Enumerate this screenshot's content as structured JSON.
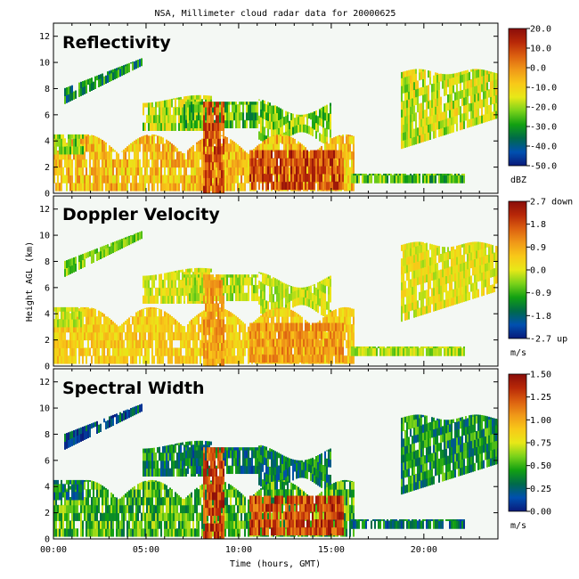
{
  "title": "NSA, Millimeter cloud radar data for 20000625",
  "xlabel": "Time (hours, GMT)",
  "ylabel": "Height AGL (km)",
  "x_tick_labels": [
    "00:00",
    "05:00",
    "10:00",
    "15:00",
    "20:00"
  ],
  "y_tick_labels": [
    "0",
    "2",
    "4",
    "6",
    "8",
    "10",
    "12"
  ],
  "panels": [
    {
      "title": "Reflectivity",
      "unit": "dBZ",
      "colorbar_labels": [
        "20.0",
        "10.0",
        "0.0",
        "-10.0",
        "-20.0",
        "-30.0",
        "-40.0",
        "-50.0"
      ]
    },
    {
      "title": "Doppler Velocity",
      "unit": "m/s",
      "colorbar_labels": [
        "2.7 down",
        "1.8",
        "0.9",
        "0.0",
        "-0.9",
        "-1.8",
        "-2.7 up"
      ]
    },
    {
      "title": "Spectral Width",
      "unit": "m/s",
      "colorbar_labels": [
        "1.50",
        "1.25",
        "1.00",
        "0.75",
        "0.50",
        "0.25",
        "0.00"
      ]
    }
  ],
  "colors": {
    "background": "#ffffff",
    "plot_background": "#f4f8f4",
    "colormap": [
      "#0a1a7a",
      "#0050b0",
      "#006a4a",
      "#12a012",
      "#7ad21a",
      "#e8e818",
      "#f8c818",
      "#f09818",
      "#dc6010",
      "#b82808",
      "#8a0d0a"
    ]
  },
  "chart_data": [
    {
      "type": "heatmap",
      "title": "Reflectivity",
      "xlabel": "Time (hours, GMT)",
      "ylabel": "Height AGL (km)",
      "xlim": [
        0,
        24
      ],
      "ylim": [
        0,
        13
      ],
      "x_ticks_hours": [
        0,
        5,
        10,
        15,
        20
      ],
      "y_ticks_km": [
        0,
        2,
        4,
        6,
        8,
        10,
        12
      ],
      "colorbar_range": [
        -50,
        20
      ],
      "colorbar_unit": "dBZ"
    },
    {
      "type": "heatmap",
      "title": "Doppler Velocity",
      "xlabel": "Time (hours, GMT)",
      "ylabel": "Height AGL (km)",
      "xlim": [
        0,
        24
      ],
      "ylim": [
        0,
        13
      ],
      "x_ticks_hours": [
        0,
        5,
        10,
        15,
        20
      ],
      "y_ticks_km": [
        0,
        2,
        4,
        6,
        8,
        10,
        12
      ],
      "colorbar_range": [
        -2.7,
        2.7
      ],
      "colorbar_unit": "m/s"
    },
    {
      "type": "heatmap",
      "title": "Spectral Width",
      "xlabel": "Time (hours, GMT)",
      "ylabel": "Height AGL (km)",
      "xlim": [
        0,
        24
      ],
      "ylim": [
        0,
        13
      ],
      "x_ticks_hours": [
        0,
        5,
        10,
        15,
        20
      ],
      "y_ticks_km": [
        0,
        2,
        4,
        6,
        8,
        10,
        12
      ],
      "colorbar_range": [
        0,
        1.5
      ],
      "colorbar_unit": "m/s"
    }
  ]
}
